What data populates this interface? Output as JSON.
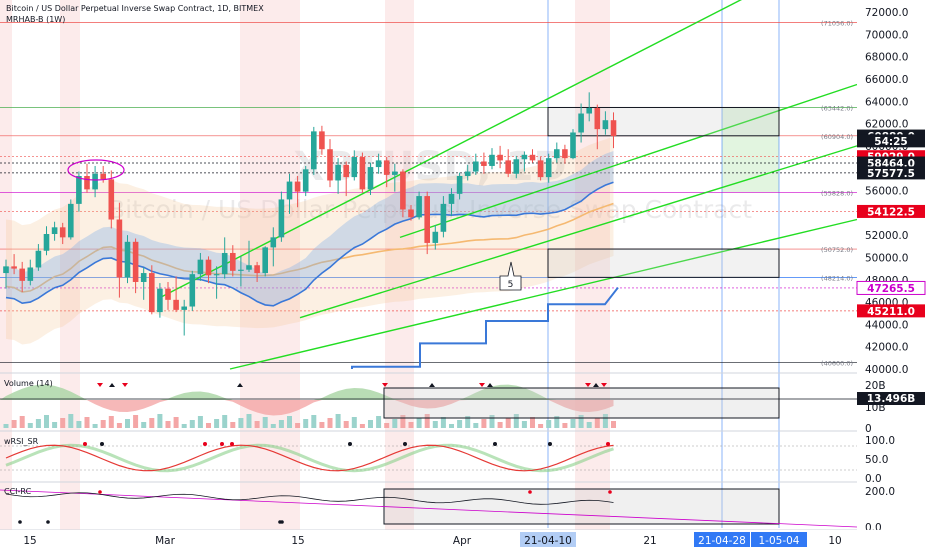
{
  "header": {
    "title": "Bitcoin / US Dollar Perpetual Inverse Swap Contract, 1D, BITMEX",
    "indicator": "MRHAB-B (1W)"
  },
  "watermark": {
    "symbol": "XBTUSD, 1D",
    "name": "Bitcoin / US Dollar Perpetual Inverse Swap Contract"
  },
  "colors": {
    "up": "#26a69a",
    "down": "#ef5350",
    "trend": "#22dd22",
    "ma_blue": "#3a78d8",
    "ma_orange": "#f5b971",
    "magenta": "#cc00cc",
    "axis_highlight": "#3179f5",
    "box_stroke": "#131722"
  },
  "chart_data": [
    {
      "type": "candlestick",
      "panel": "price",
      "y_axis": {
        "min": 40000,
        "max": 72000,
        "ticks": [
          "72000.0",
          "70000.0",
          "68000.0",
          "66000.0",
          "64000.0",
          "62000.0",
          "60000.0",
          "58000.0",
          "56000.0",
          "54000.0",
          "52000.0",
          "50000.0",
          "48000.0",
          "46000.0",
          "44000.0",
          "42000.0",
          "40000.0"
        ]
      },
      "level_labels": [
        "(71056.0)",
        "(63442.0)",
        "(60904.0)",
        "(55828.0)",
        "(50752.0)",
        "(48214.0)",
        "(40600.0)"
      ],
      "price_labels": [
        {
          "text": "60880.0",
          "value": 60880,
          "style": "dark"
        },
        {
          "text": "54:25",
          "value": 60450,
          "style": "dark"
        },
        {
          "text": "59029.0",
          "value": 59029,
          "style": "red"
        },
        {
          "text": "58464.0",
          "value": 58464,
          "style": "dark"
        },
        {
          "text": "57577.5",
          "value": 57577.5,
          "style": "dark"
        },
        {
          "text": "54122.5",
          "value": 54122.5,
          "style": "red"
        },
        {
          "text": "47265.5",
          "value": 47265.5,
          "style": "outline"
        },
        {
          "text": "45211.0",
          "value": 45211,
          "style": "red"
        }
      ],
      "annotation": "5",
      "candles_ohlc": [
        [
          48600,
          49800,
          47200,
          49200
        ],
        [
          49200,
          50300,
          48500,
          49000
        ],
        [
          49000,
          49600,
          46900,
          47900
        ],
        [
          47900,
          49800,
          47500,
          49100
        ],
        [
          49100,
          51200,
          48800,
          50600
        ],
        [
          50600,
          52800,
          50200,
          52100
        ],
        [
          52100,
          53200,
          51500,
          52700
        ],
        [
          52700,
          53100,
          51200,
          51800
        ],
        [
          51800,
          55200,
          51600,
          54800
        ],
        [
          54800,
          57700,
          54100,
          57300
        ],
        [
          57300,
          58400,
          55800,
          56100
        ],
        [
          56100,
          58200,
          55400,
          57500
        ],
        [
          57500,
          58200,
          56700,
          57000
        ],
        [
          57000,
          57800,
          52600,
          53400
        ],
        [
          53400,
          54900,
          46400,
          48200
        ],
        [
          48200,
          52000,
          47700,
          51400
        ],
        [
          51400,
          51700,
          46800,
          47800
        ],
        [
          47800,
          49100,
          46200,
          48600
        ],
        [
          48600,
          49300,
          44900,
          45100
        ],
        [
          45100,
          47700,
          44600,
          47200
        ],
        [
          47200,
          47800,
          45300,
          46200
        ],
        [
          46200,
          48300,
          45100,
          45300
        ],
        [
          45300,
          46200,
          43000,
          45600
        ],
        [
          45600,
          48800,
          45200,
          48500
        ],
        [
          48500,
          50400,
          47900,
          49800
        ],
        [
          49800,
          50100,
          47700,
          48400
        ],
        [
          48400,
          49200,
          46300,
          48500
        ],
        [
          48500,
          51800,
          48100,
          50400
        ],
        [
          50400,
          51100,
          48300,
          48800
        ],
        [
          48800,
          50100,
          47400,
          48900
        ],
        [
          48900,
          51500,
          48700,
          49300
        ],
        [
          49300,
          49600,
          47800,
          48600
        ],
        [
          48600,
          51000,
          48300,
          50900
        ],
        [
          50900,
          52700,
          49200,
          51800
        ],
        [
          51800,
          55900,
          51400,
          55200
        ],
        [
          55200,
          57500,
          53900,
          56800
        ],
        [
          56800,
          57300,
          54500,
          55900
        ],
        [
          55900,
          58200,
          55500,
          57900
        ],
        [
          57900,
          61700,
          57400,
          61300
        ],
        [
          61300,
          61800,
          59200,
          59700
        ],
        [
          59700,
          60600,
          56300,
          56900
        ],
        [
          56900,
          58900,
          55700,
          58300
        ],
        [
          58300,
          58600,
          55500,
          57200
        ],
        [
          57200,
          59600,
          56900,
          59000
        ],
        [
          59000,
          59400,
          55800,
          56100
        ],
        [
          56100,
          58500,
          55600,
          58100
        ],
        [
          58100,
          59300,
          57500,
          58700
        ],
        [
          58700,
          59000,
          56300,
          57400
        ],
        [
          57400,
          58400,
          55900,
          57700
        ],
        [
          57700,
          57900,
          53600,
          54300
        ],
        [
          54300,
          54700,
          53300,
          53600
        ],
        [
          53600,
          55900,
          53400,
          55500
        ],
        [
          55500,
          55900,
          50300,
          51300
        ],
        [
          51300,
          52900,
          50700,
          52300
        ],
        [
          52300,
          55500,
          51800,
          54800
        ],
        [
          54800,
          56200,
          53700,
          55700
        ],
        [
          55700,
          57600,
          55200,
          57300
        ],
        [
          57300,
          58300,
          56900,
          57700
        ],
        [
          57700,
          59300,
          57400,
          58600
        ],
        [
          58600,
          59400,
          57500,
          58200
        ],
        [
          58200,
          59800,
          57900,
          59200
        ],
        [
          59200,
          60000,
          58000,
          58700
        ],
        [
          58700,
          59700,
          57200,
          57500
        ],
        [
          57500,
          59100,
          57100,
          58800
        ],
        [
          58800,
          59500,
          57700,
          59200
        ],
        [
          59200,
          59700,
          58500,
          58700
        ],
        [
          58700,
          59000,
          56900,
          57200
        ],
        [
          57200,
          59300,
          56700,
          58900
        ],
        [
          58900,
          60300,
          58500,
          59700
        ],
        [
          59700,
          60100,
          58400,
          58900
        ],
        [
          58900,
          61500,
          58800,
          61200
        ],
        [
          61200,
          63800,
          60300,
          62900
        ],
        [
          62900,
          64800,
          62200,
          63400
        ],
        [
          63400,
          63700,
          59700,
          61500
        ],
        [
          61500,
          63100,
          61000,
          62300
        ],
        [
          62300,
          63000,
          59800,
          60880
        ]
      ],
      "legend": "none",
      "grid": false
    },
    {
      "type": "area",
      "panel": "volume",
      "label": "Volume (14)",
      "y_axis": {
        "ticks": [
          "20B",
          "10B",
          "0"
        ]
      },
      "price_labels": [
        {
          "text": "13.496B",
          "value": 13.496,
          "style": "dark"
        }
      ]
    },
    {
      "type": "line",
      "panel": "oscillator",
      "label": "wRSI_SR",
      "y_axis": {
        "min": 0,
        "max": 100,
        "ticks": [
          "100.0",
          "50.0",
          "0.0"
        ]
      }
    },
    {
      "type": "line",
      "panel": "cci",
      "label": "CCI-RC",
      "y_axis": {
        "min": 0,
        "max": 200,
        "ticks": [
          "200.0",
          "0.0"
        ]
      }
    }
  ],
  "x_axis": {
    "labels": [
      "15",
      "Mar",
      "15",
      "Apr",
      "21-04-10",
      "21",
      "21-04-28",
      "1-05-04",
      "10"
    ]
  }
}
